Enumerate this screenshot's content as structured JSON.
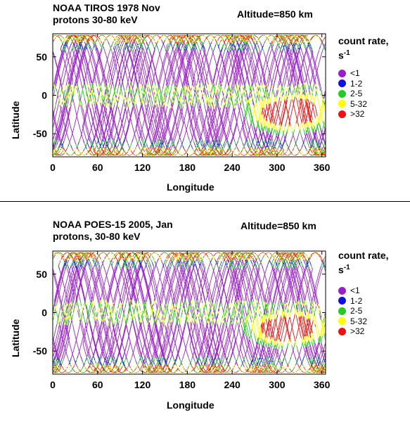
{
  "chart_data": [
    {
      "type": "scatter",
      "title_line1": "NOAA  TIROS 1978 Nov",
      "title_line2": "protons 30-80 keV",
      "altitude": "Altitude=850 km",
      "xlabel": "Longitude",
      "ylabel": "Latitude",
      "xlim": [
        0,
        365
      ],
      "ylim": [
        -80,
        80
      ],
      "xticks": [
        "0",
        "60",
        "120",
        "180",
        "240",
        "300",
        "360"
      ],
      "yticks": [
        "50",
        "0",
        "-50"
      ],
      "legend_title_line1": "count rate,",
      "legend_title_line2": "s",
      "legend_title_exp": "-1",
      "legend": [
        {
          "label": "<1",
          "color": "#9b1fc9"
        },
        {
          "label": "1-2",
          "color": "#1010e0"
        },
        {
          "label": "2-5",
          "color": "#22cc22"
        },
        {
          "label": "5-32",
          "color": "#ffff00"
        },
        {
          "label": ">32",
          "color": "#ee1111"
        }
      ],
      "saa_center": [
        318,
        -22
      ],
      "saa_extent": [
        52,
        24
      ]
    },
    {
      "type": "scatter",
      "title_line1": "NOAA POES-15  2005, Jan",
      "title_line2": "protons, 30-80 keV",
      "altitude": "Altitude=850 km",
      "xlabel": "Longitude",
      "ylabel": "Latitude",
      "xlim": [
        0,
        365
      ],
      "ylim": [
        -80,
        80
      ],
      "xticks": [
        "0",
        "60",
        "120",
        "180",
        "240",
        "300",
        "360"
      ],
      "yticks": [
        "50",
        "0",
        "-50"
      ],
      "legend_title_line1": "count rate,",
      "legend_title_line2": "s",
      "legend_title_exp": "-1",
      "legend": [
        {
          "label": "<1",
          "color": "#9b1fc9"
        },
        {
          "label": "1-2",
          "color": "#1010e0"
        },
        {
          "label": "2-5",
          "color": "#22cc22"
        },
        {
          "label": "5-32",
          "color": "#ffff00"
        },
        {
          "label": ">32",
          "color": "#ee1111"
        }
      ],
      "saa_center": [
        315,
        -20
      ],
      "saa_extent": [
        50,
        22
      ]
    }
  ]
}
